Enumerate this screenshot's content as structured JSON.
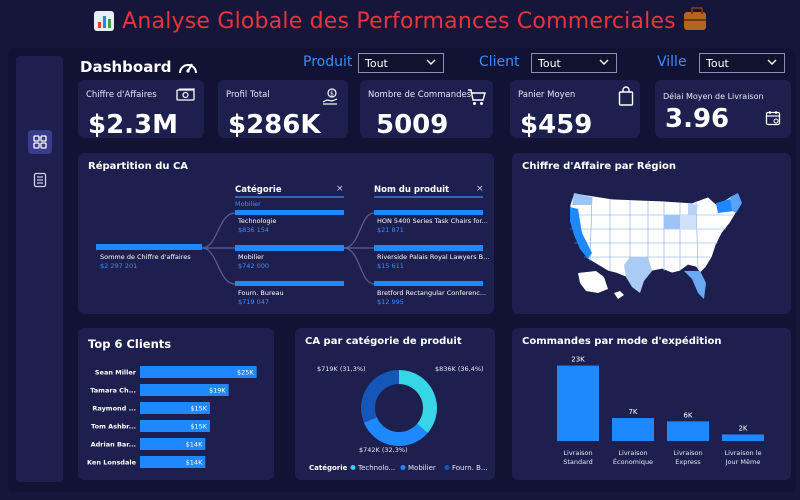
{
  "title": "Analyse Globale des Performances Commerciales",
  "dashboard_label": "Dashboard",
  "filters": [
    {
      "label": "Produit",
      "value": "Tout"
    },
    {
      "label": "Client",
      "value": "Tout"
    },
    {
      "label": "Ville",
      "value": "Tout"
    }
  ],
  "kpis": [
    {
      "label": "Chiffre d'Affaires",
      "value": "$2.3M",
      "icon": "money-icon"
    },
    {
      "label": "Profil Total",
      "value": "$286K",
      "icon": "money-hand-icon"
    },
    {
      "label": "Nombre de Commandes",
      "value": "5009",
      "icon": "cart-icon"
    },
    {
      "label": "Panier Moyen",
      "value": "$459",
      "icon": "bag-icon"
    },
    {
      "label": "Délai Moyen de Livraison",
      "value": "3.96",
      "icon": "calendar-icon"
    }
  ],
  "decomposition": {
    "title": "Répartition du CA",
    "root_label": "Somme de Chiffre d'affaires",
    "root_value": "$2 297 201",
    "col1_header": "Catégorie",
    "col1_filter": "Mobilier",
    "col2_header": "Nom du produit",
    "categories": [
      {
        "name": "Technologie",
        "value": "$836 154"
      },
      {
        "name": "Mobilier",
        "value": "$742 000"
      },
      {
        "name": "Fourn. Bureau",
        "value": "$719 047"
      }
    ],
    "products": [
      {
        "name": "HON 5400 Series Task Chairs for...",
        "value": "$21 871"
      },
      {
        "name": "Riverside Palais Royal Lawyers B...",
        "value": "$15 611"
      },
      {
        "name": "Bretford Rectangular Conferenc...",
        "value": "$12 995"
      }
    ],
    "close_symbol": "×"
  },
  "region_map": {
    "title": "Chiffre d'Affaire par Région"
  },
  "chart_data": [
    {
      "type": "bar",
      "title": "Top 6 Clients",
      "orientation": "horizontal",
      "categories": [
        "Sean Miller",
        "Tamara Ch...",
        "Raymond ...",
        "Tom Ashbr...",
        "Adrian Bar...",
        "Ken Lonsdale"
      ],
      "values": [
        25,
        19,
        15,
        15,
        14,
        14
      ],
      "labels": [
        "$25K",
        "$19K",
        "$15K",
        "$15K",
        "$14K",
        "$14K"
      ],
      "xlim": [
        0,
        27
      ]
    },
    {
      "type": "pie",
      "title": "CA par catégorie de produit",
      "categories": [
        "Technologie",
        "Mobilier",
        "Fourn. Bureau"
      ],
      "values": [
        836,
        742,
        719
      ],
      "labels": [
        "$836K (36,4%)",
        "$742K (32,3%)",
        "$719K (31,3%)"
      ],
      "colors": [
        "#36d6e7",
        "#1e88ff",
        "#1457b8"
      ],
      "legend_title": "Catégorie",
      "legend_labels": [
        "Technolo...",
        "Mobilier",
        "Fourn. B..."
      ],
      "legend_position": "bottom"
    },
    {
      "type": "bar",
      "title": "Commandes par mode d'expédition",
      "categories": [
        "Livraison Standard",
        "Livraison Économique",
        "Livraison Express",
        "Livraison le Jour Même"
      ],
      "category_lines": [
        [
          "Livraison",
          "Standard"
        ],
        [
          "Livraison",
          "Économique"
        ],
        [
          "Livraison",
          "Express"
        ],
        [
          "Livraison le",
          "Jour Même"
        ]
      ],
      "values": [
        23,
        7,
        6,
        2
      ],
      "labels": [
        "23K",
        "7K",
        "6K",
        "2K"
      ],
      "ylim": [
        0,
        25
      ]
    }
  ]
}
